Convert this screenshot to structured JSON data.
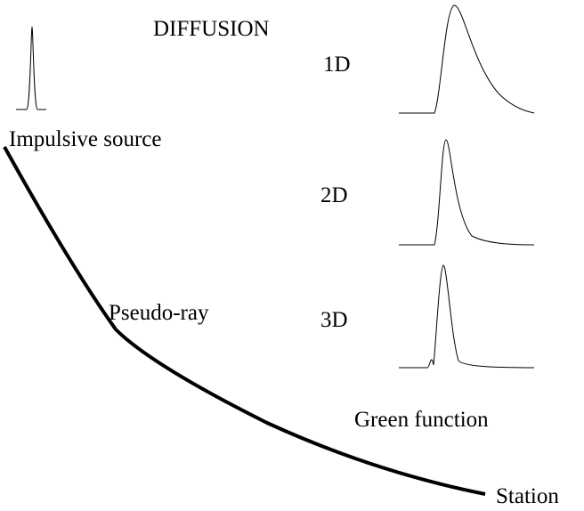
{
  "title": "DIFFUSION",
  "source_label": "Impulsive source",
  "ray_label": "Pseudo-ray",
  "station_label": "Station",
  "green_function_label": "Green function",
  "dimensions": [
    "1D",
    "2D",
    "3D"
  ]
}
